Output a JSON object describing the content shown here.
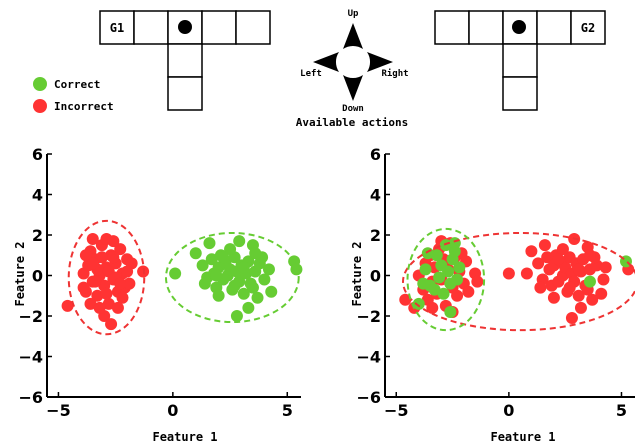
{
  "grids": {
    "left": {
      "label": "G1"
    },
    "right": {
      "label": "G2"
    }
  },
  "actions": {
    "up": "Up",
    "down": "Down",
    "left": "Left",
    "right": "Right",
    "caption": "Available actions"
  },
  "legend": {
    "correct": "Correct",
    "incorrect": "Incorrect"
  },
  "colors": {
    "correct": "#66cc33",
    "incorrect": "#ff3333",
    "ellipse_correct": "#66cc33",
    "ellipse_incorrect": "#ee3333",
    "axis": "#000000"
  },
  "chart_data": [
    {
      "type": "scatter",
      "xlabel": "Feature 1",
      "ylabel": "Feature 2",
      "xlim": [
        -5.5,
        5.6
      ],
      "ylim": [
        -6,
        6
      ],
      "xticks": [
        -5,
        0,
        5
      ],
      "yticks": [
        -6,
        -4,
        -2,
        0,
        2,
        4,
        6
      ],
      "series": [
        {
          "name": "Correct",
          "color": "#66cc33",
          "points": [
            [
              0.1,
              0.1
            ],
            [
              1.0,
              1.1
            ],
            [
              1.3,
              0.5
            ],
            [
              1.5,
              -0.1
            ],
            [
              1.7,
              0.8
            ],
            [
              1.8,
              0.1
            ],
            [
              1.9,
              -0.6
            ],
            [
              2.0,
              0.4
            ],
            [
              2.1,
              1.0
            ],
            [
              2.2,
              -0.2
            ],
            [
              2.3,
              0.6
            ],
            [
              2.4,
              0.0
            ],
            [
              2.5,
              0.3
            ],
            [
              2.6,
              -0.7
            ],
            [
              2.7,
              0.9
            ],
            [
              2.8,
              0.2
            ],
            [
              2.9,
              -0.3
            ],
            [
              3.0,
              0.5
            ],
            [
              3.1,
              -0.9
            ],
            [
              3.2,
              0.1
            ],
            [
              3.3,
              0.7
            ],
            [
              3.4,
              -0.4
            ],
            [
              3.5,
              1.5
            ],
            [
              3.6,
              0.2
            ],
            [
              3.7,
              -1.1
            ],
            [
              3.8,
              0.6
            ],
            [
              4.0,
              -0.2
            ],
            [
              4.2,
              0.3
            ],
            [
              2.5,
              1.3
            ],
            [
              3.3,
              -1.6
            ],
            [
              2.8,
              -2.0
            ],
            [
              5.3,
              0.7
            ],
            [
              5.4,
              0.3
            ],
            [
              2.0,
              -1.0
            ],
            [
              3.9,
              0.9
            ],
            [
              1.6,
              1.6
            ],
            [
              2.9,
              1.7
            ],
            [
              3.5,
              -0.6
            ],
            [
              2.2,
              0.9
            ],
            [
              3.1,
              0.4
            ],
            [
              1.4,
              -0.4
            ],
            [
              4.3,
              -0.8
            ],
            [
              2.7,
              -0.5
            ],
            [
              3.6,
              1.1
            ],
            [
              1.9,
              0.0
            ]
          ]
        },
        {
          "name": "Incorrect",
          "color": "#ff3333",
          "points": [
            [
              -4.6,
              -1.5
            ],
            [
              -3.9,
              0.1
            ],
            [
              -3.8,
              -0.8
            ],
            [
              -3.7,
              0.5
            ],
            [
              -3.6,
              1.2
            ],
            [
              -3.5,
              -0.3
            ],
            [
              -3.4,
              0.8
            ],
            [
              -3.3,
              -1.0
            ],
            [
              -3.2,
              0.0
            ],
            [
              -3.1,
              1.5
            ],
            [
              -3.0,
              -0.5
            ],
            [
              -2.9,
              0.4
            ],
            [
              -2.8,
              -1.4
            ],
            [
              -2.7,
              1.0
            ],
            [
              -2.6,
              -0.2
            ],
            [
              -2.5,
              0.6
            ],
            [
              -2.4,
              -0.8
            ],
            [
              -2.3,
              1.3
            ],
            [
              -2.2,
              0.1
            ],
            [
              -2.1,
              -0.6
            ],
            [
              -2.0,
              0.8
            ],
            [
              -3.5,
              1.8
            ],
            [
              -2.9,
              1.8
            ],
            [
              -2.6,
              1.7
            ],
            [
              -3.3,
              0.3
            ],
            [
              -2.9,
              -0.9
            ],
            [
              -3.0,
              -2.0
            ],
            [
              -2.7,
              -2.4
            ],
            [
              -3.6,
              -1.4
            ],
            [
              -2.4,
              -1.6
            ],
            [
              -1.9,
              -0.4
            ],
            [
              -1.8,
              0.6
            ],
            [
              -1.3,
              0.2
            ],
            [
              -3.9,
              -0.6
            ],
            [
              -3.1,
              0.9
            ],
            [
              -2.8,
              0.2
            ],
            [
              -3.4,
              -0.3
            ],
            [
              -2.2,
              -1.1
            ],
            [
              -3.8,
              1.0
            ],
            [
              -2.5,
              -0.1
            ],
            [
              -3.2,
              -1.6
            ],
            [
              -2.0,
              0.2
            ],
            [
              -2.6,
              0.9
            ],
            [
              -3.5,
              0.6
            ],
            [
              -2.3,
              -0.4
            ]
          ]
        }
      ],
      "ellipses": [
        {
          "class": "Incorrect",
          "center": [
            -2.9,
            -0.1
          ],
          "radii": [
            1.65,
            2.8
          ]
        },
        {
          "class": "Correct",
          "center": [
            2.6,
            -0.1
          ],
          "radii": [
            2.9,
            2.2
          ]
        }
      ]
    },
    {
      "type": "scatter",
      "xlabel": "Feature 1",
      "ylabel": "Feature 2",
      "xlim": [
        -5.5,
        5.6
      ],
      "ylim": [
        -6,
        6
      ],
      "xticks": [
        -5,
        0,
        5
      ],
      "yticks": [
        -6,
        -4,
        -2,
        0,
        2,
        4,
        6
      ],
      "series": [
        {
          "name": "Incorrect",
          "color": "#ff3333",
          "points": [
            [
              -4.6,
              -1.2
            ],
            [
              -4.0,
              0.0
            ],
            [
              -3.8,
              -0.7
            ],
            [
              -3.7,
              0.6
            ],
            [
              -3.6,
              -1.2
            ],
            [
              -3.5,
              1.0
            ],
            [
              -3.4,
              -0.3
            ],
            [
              -3.3,
              0.4
            ],
            [
              -3.2,
              -0.9
            ],
            [
              -3.1,
              1.3
            ],
            [
              -3.0,
              -0.2
            ],
            [
              -2.9,
              0.8
            ],
            [
              -2.8,
              -1.5
            ],
            [
              -2.7,
              0.3
            ],
            [
              -2.6,
              1.6
            ],
            [
              -2.5,
              -0.6
            ],
            [
              -2.4,
              0.9
            ],
            [
              -2.3,
              -1.0
            ],
            [
              -2.2,
              0.2
            ],
            [
              -2.1,
              1.1
            ],
            [
              -2.0,
              -0.4
            ],
            [
              -1.9,
              0.7
            ],
            [
              -1.8,
              -0.8
            ],
            [
              -1.5,
              0.1
            ],
            [
              -3.0,
              1.7
            ],
            [
              -2.5,
              -1.8
            ],
            [
              -3.4,
              -1.6
            ],
            [
              -4.2,
              -1.6
            ],
            [
              -1.4,
              -0.3
            ],
            [
              0.0,
              0.1
            ],
            [
              0.8,
              0.1
            ],
            [
              1.0,
              1.2
            ],
            [
              1.3,
              0.6
            ],
            [
              1.5,
              -0.2
            ],
            [
              1.7,
              0.9
            ],
            [
              1.8,
              0.3
            ],
            [
              1.9,
              -0.5
            ],
            [
              2.0,
              0.5
            ],
            [
              2.1,
              1.0
            ],
            [
              2.2,
              -0.3
            ],
            [
              2.3,
              0.7
            ],
            [
              2.4,
              0.0
            ],
            [
              2.5,
              0.4
            ],
            [
              2.6,
              -0.8
            ],
            [
              2.7,
              0.9
            ],
            [
              2.8,
              0.1
            ],
            [
              2.9,
              -0.3
            ],
            [
              3.0,
              0.6
            ],
            [
              3.1,
              -1.0
            ],
            [
              3.2,
              0.2
            ],
            [
              3.3,
              0.8
            ],
            [
              3.4,
              -0.5
            ],
            [
              3.5,
              1.4
            ],
            [
              3.6,
              0.3
            ],
            [
              3.7,
              -1.2
            ],
            [
              3.9,
              0.5
            ],
            [
              4.2,
              -0.2
            ],
            [
              4.3,
              0.4
            ],
            [
              2.4,
              1.3
            ],
            [
              3.2,
              -1.6
            ],
            [
              2.8,
              -2.1
            ],
            [
              5.3,
              0.3
            ],
            [
              2.0,
              -1.1
            ],
            [
              3.8,
              0.9
            ],
            [
              1.6,
              1.5
            ],
            [
              2.9,
              1.8
            ],
            [
              3.5,
              -0.7
            ],
            [
              2.2,
              0.8
            ],
            [
              3.1,
              0.3
            ],
            [
              1.4,
              -0.6
            ],
            [
              4.1,
              -0.9
            ],
            [
              2.7,
              -0.6
            ],
            [
              3.6,
              1.0
            ]
          ]
        },
        {
          "name": "Correct",
          "color": "#66cc33",
          "points": [
            [
              -4.0,
              -1.4
            ],
            [
              -3.7,
              0.3
            ],
            [
              -3.5,
              -0.5
            ],
            [
              -3.2,
              1.0
            ],
            [
              -3.1,
              -0.1
            ],
            [
              -3.0,
              0.5
            ],
            [
              -2.9,
              -0.9
            ],
            [
              -2.8,
              1.5
            ],
            [
              -2.7,
              0.2
            ],
            [
              -2.6,
              -0.4
            ],
            [
              -2.5,
              0.8
            ],
            [
              -2.4,
              1.2
            ],
            [
              -2.3,
              -0.2
            ],
            [
              -2.2,
              0.4
            ],
            [
              -3.3,
              -0.7
            ],
            [
              -2.6,
              -1.8
            ],
            [
              -3.6,
              1.1
            ],
            [
              -2.4,
              1.6
            ],
            [
              -3.8,
              -0.4
            ],
            [
              3.6,
              -0.3
            ],
            [
              5.2,
              0.7
            ]
          ]
        }
      ],
      "ellipses": [
        {
          "class": "Incorrect",
          "center": [
            0.5,
            -0.3
          ],
          "radii": [
            5.2,
            2.4
          ]
        },
        {
          "class": "Correct",
          "center": [
            -2.8,
            -0.2
          ],
          "radii": [
            1.7,
            2.5
          ]
        }
      ]
    }
  ]
}
